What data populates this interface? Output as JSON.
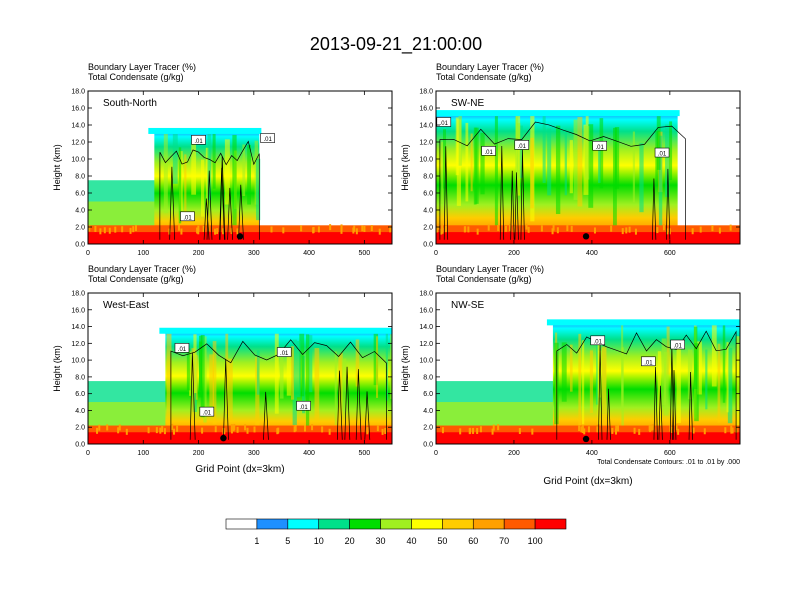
{
  "title": "2013-09-21_21:00:00",
  "chart_data": {
    "type": "heatmap",
    "panels": [
      {
        "id": "south-north",
        "name": "South-North",
        "shaded_label": "Boundary Layer Tracer   (%)",
        "contour_label": "Total Condensate   (g/kg)",
        "ylabel": "Height (km)",
        "xlabel": "",
        "xlim": [
          0,
          550
        ],
        "ylim": [
          0,
          18
        ],
        "x_ticks": [
          0,
          100,
          200,
          300,
          400,
          500
        ],
        "y_ticks": [
          "0.0",
          "2.0",
          "4.0",
          "6.0",
          "8.0",
          "10.0",
          "12.0",
          "14.0",
          "16.0",
          "18.0"
        ],
        "footnote": "",
        "contour_tags": [
          {
            "x": 200,
            "y": 12.2,
            "text": ".01"
          },
          {
            "x": 325,
            "y": 12.4,
            "text": ".01"
          },
          {
            "x": 180,
            "y": 3.2,
            "text": ".01"
          }
        ],
        "cloud": {
          "x0": 120,
          "x1": 310,
          "top": 13.3,
          "right_edge_x": 320
        },
        "marker": {
          "x": 275,
          "y": 0.9
        }
      },
      {
        "id": "sw-ne",
        "name": "SW-NE",
        "shaded_label": "Boundary Layer Tracer   (%)",
        "contour_label": "Total Condensate   (g/kg)",
        "ylabel": "Height (km)",
        "xlabel": "",
        "xlim": [
          0,
          780
        ],
        "ylim": [
          0,
          18
        ],
        "x_ticks": [
          0,
          200,
          400,
          600
        ],
        "y_ticks": [
          "0.0",
          "2.0",
          "4.0",
          "6.0",
          "8.0",
          "10.0",
          "12.0",
          "14.0",
          "16.0",
          "18.0"
        ],
        "footnote": "",
        "contour_tags": [
          {
            "x": 20,
            "y": 14.3,
            "text": ".01"
          },
          {
            "x": 135,
            "y": 10.9,
            "text": ".01"
          },
          {
            "x": 220,
            "y": 11.6,
            "text": ".01"
          },
          {
            "x": 420,
            "y": 11.5,
            "text": ".01"
          },
          {
            "x": 580,
            "y": 10.7,
            "text": ".01"
          }
        ],
        "cloud": {
          "x0": 0,
          "x1": 620,
          "top": 15.4,
          "right_edge_x": 650
        },
        "marker": {
          "x": 385,
          "y": 0.9
        }
      },
      {
        "id": "west-east",
        "name": "West-East",
        "shaded_label": "Boundary Layer Tracer   (%)",
        "contour_label": "Total Condensate   (g/kg)",
        "ylabel": "Height (km)",
        "xlabel": "Grid Point (dx=3km)",
        "xlim": [
          0,
          550
        ],
        "ylim": [
          0,
          18
        ],
        "x_ticks": [
          0,
          100,
          200,
          300,
          400,
          500
        ],
        "y_ticks": [
          "0.0",
          "2.0",
          "4.0",
          "6.0",
          "8.0",
          "10.0",
          "12.0",
          "14.0",
          "16.0",
          "18.0"
        ],
        "footnote": "",
        "contour_tags": [
          {
            "x": 170,
            "y": 11.4,
            "text": ".01"
          },
          {
            "x": 355,
            "y": 10.9,
            "text": ".01"
          },
          {
            "x": 390,
            "y": 4.5,
            "text": ".01"
          },
          {
            "x": 215,
            "y": 3.8,
            "text": ".01"
          }
        ],
        "cloud": {
          "x0": 140,
          "x1": 550,
          "top": 13.5,
          "right_edge_x": 550
        },
        "marker": {
          "x": 245,
          "y": 0.7
        }
      },
      {
        "id": "nw-se",
        "name": "NW-SE",
        "shaded_label": "Boundary Layer Tracer   (%)",
        "contour_label": "Total Condensate   (g/kg)",
        "ylabel": "Height (km)",
        "xlabel": "Grid Point (dx=3km)",
        "xlim": [
          0,
          780
        ],
        "ylim": [
          0,
          18
        ],
        "x_ticks": [
          0,
          200,
          400,
          600
        ],
        "y_ticks": [
          "0.0",
          "2.0",
          "4.0",
          "6.0",
          "8.0",
          "10.0",
          "12.0",
          "14.0",
          "16.0",
          "18.0"
        ],
        "footnote": "Total Condensate Contours: .01 to .01 by .000",
        "contour_tags": [
          {
            "x": 415,
            "y": 12.3,
            "text": ".01"
          },
          {
            "x": 545,
            "y": 9.8,
            "text": ".01"
          },
          {
            "x": 620,
            "y": 11.8,
            "text": ".01"
          }
        ],
        "cloud": {
          "x0": 300,
          "x1": 780,
          "top": 14.5,
          "right_edge_x": 780
        },
        "marker": {
          "x": 385,
          "y": 0.6
        }
      }
    ],
    "colorbar": {
      "labels": [
        "1",
        "5",
        "10",
        "20",
        "30",
        "40",
        "50",
        "60",
        "70",
        "100"
      ],
      "colors": [
        "#ffffff",
        "#1e90ff",
        "#00ffff",
        "#00e08a",
        "#00dd00",
        "#a0f020",
        "#ffff00",
        "#ffcc00",
        "#ffa000",
        "#ff5a00",
        "#ff0000"
      ]
    }
  }
}
